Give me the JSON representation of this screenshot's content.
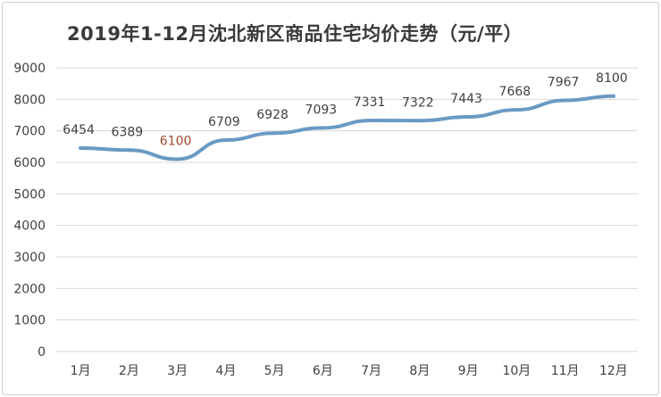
{
  "chart_data": {
    "type": "line",
    "title": "2019年1-12月沈北新区商品住宅均价走势（元/平）",
    "categories": [
      "1月",
      "2月",
      "3月",
      "4月",
      "5月",
      "6月",
      "7月",
      "8月",
      "9月",
      "10月",
      "11月",
      "12月"
    ],
    "series": [
      {
        "values": [
          6454,
          6389,
          6100,
          6709,
          6928,
          7093,
          7331,
          7322,
          7443,
          7668,
          7967,
          8100
        ]
      }
    ],
    "data_labels": [
      "6454",
      "6389",
      "6100",
      "6709",
      "6928",
      "7093",
      "7331",
      "7322",
      "7443",
      "7668",
      "7967",
      "8100"
    ],
    "y_ticks": [
      "0",
      "1000",
      "2000",
      "3000",
      "4000",
      "5000",
      "6000",
      "7000",
      "8000",
      "9000"
    ],
    "ylim": [
      0,
      9000
    ],
    "grid": true,
    "legend": "none",
    "colors": {
      "line": "#6a9ac4",
      "grid": "#d9d9d9",
      "label_highlight": "#9c4a2a"
    }
  }
}
